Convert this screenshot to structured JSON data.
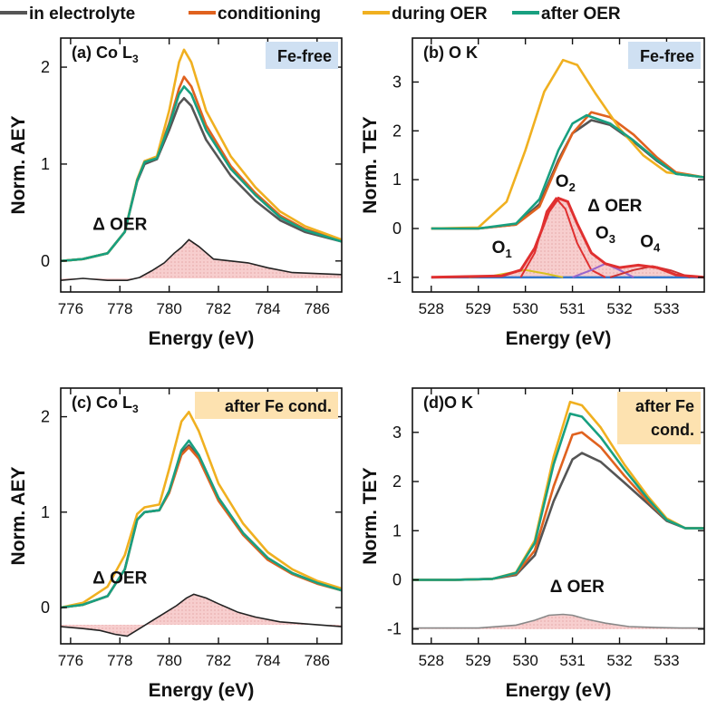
{
  "legend": {
    "items": [
      {
        "label": "in electrolyte",
        "color": "#555555"
      },
      {
        "label": "conditioning",
        "color": "#e0621f"
      },
      {
        "label": "during OER",
        "color": "#f0b020"
      },
      {
        "label": "after OER",
        "color": "#18a080"
      }
    ]
  },
  "colors": {
    "diff_line": "#222222",
    "diff_fill": "#f2b3b3",
    "fefree_badge": "#cfe0f2",
    "fecond_badge": "#fde2b0",
    "fit_o1": "#d8c01f",
    "fit_o2": "#e03030",
    "fit_o3": "#9966cc",
    "fit_o4": "#cc3333",
    "fit_base": "#3377cc"
  },
  "chart_data": [
    {
      "id": "a",
      "type": "line",
      "panel_label": "(a) Co L",
      "panel_label_sub": "3",
      "badge": [
        "Fe-free"
      ],
      "xlabel": "Energy (eV)",
      "ylabel": "Norm. AEY",
      "xlim": [
        775.6,
        787.0
      ],
      "ylim": [
        -0.32,
        2.3
      ],
      "xticks": [
        776,
        778,
        780,
        782,
        784,
        786
      ],
      "yticks": [
        0,
        1,
        2
      ],
      "diff_label": "Δ OER",
      "series": [
        {
          "name": "in electrolyte",
          "x": [
            775.6,
            776.5,
            777.5,
            778.2,
            778.7,
            779.0,
            779.5,
            780.0,
            780.4,
            780.6,
            780.9,
            781.5,
            782.5,
            783.5,
            784.5,
            785.5,
            787.0
          ],
          "y": [
            0.0,
            0.02,
            0.08,
            0.3,
            0.82,
            1.0,
            1.05,
            1.35,
            1.62,
            1.68,
            1.6,
            1.25,
            0.88,
            0.62,
            0.42,
            0.3,
            0.2
          ]
        },
        {
          "name": "conditioning",
          "x": [
            775.6,
            776.5,
            777.5,
            778.2,
            778.7,
            779.0,
            779.5,
            780.0,
            780.4,
            780.6,
            780.9,
            781.5,
            782.5,
            783.5,
            784.5,
            785.5,
            787.0
          ],
          "y": [
            0.0,
            0.02,
            0.08,
            0.3,
            0.84,
            1.03,
            1.07,
            1.42,
            1.78,
            1.9,
            1.8,
            1.4,
            0.98,
            0.7,
            0.47,
            0.33,
            0.21
          ]
        },
        {
          "name": "during OER",
          "x": [
            775.6,
            776.5,
            777.5,
            778.2,
            778.7,
            779.0,
            779.5,
            780.0,
            780.4,
            780.6,
            780.9,
            781.5,
            782.5,
            783.5,
            784.5,
            785.5,
            787.0
          ],
          "y": [
            0.0,
            0.02,
            0.08,
            0.3,
            0.84,
            1.03,
            1.08,
            1.55,
            2.05,
            2.18,
            2.05,
            1.55,
            1.08,
            0.76,
            0.51,
            0.36,
            0.22
          ]
        },
        {
          "name": "after OER",
          "x": [
            775.6,
            776.5,
            777.5,
            778.2,
            778.7,
            779.0,
            779.5,
            780.0,
            780.4,
            780.6,
            780.9,
            781.5,
            782.5,
            783.5,
            784.5,
            785.5,
            787.0
          ],
          "y": [
            0.0,
            0.02,
            0.08,
            0.3,
            0.83,
            1.02,
            1.06,
            1.4,
            1.72,
            1.8,
            1.72,
            1.35,
            0.95,
            0.68,
            0.45,
            0.32,
            0.2
          ]
        }
      ],
      "difference": {
        "x": [
          775.6,
          776.5,
          777.5,
          778.3,
          778.8,
          779.3,
          779.8,
          780.2,
          780.5,
          780.8,
          781.2,
          781.8,
          782.5,
          783.2,
          784.0,
          785.0,
          786.0,
          787.0
        ],
        "y": [
          -0.2,
          -0.18,
          -0.2,
          -0.2,
          -0.17,
          -0.1,
          -0.02,
          0.08,
          0.14,
          0.22,
          0.15,
          0.02,
          0.0,
          -0.02,
          -0.07,
          -0.12,
          -0.13,
          -0.14
        ]
      }
    },
    {
      "id": "b",
      "type": "line",
      "panel_label": "(b) O K",
      "panel_label_sub": "",
      "badge": [
        "Fe-free"
      ],
      "xlabel": "Energy (eV)",
      "ylabel": "Norm. TEY",
      "xlim": [
        527.6,
        533.8
      ],
      "ylim": [
        -1.3,
        3.9
      ],
      "xticks": [
        528,
        529,
        530,
        531,
        532,
        533
      ],
      "yticks": [
        -1,
        0,
        1,
        2,
        3
      ],
      "diff_label": "Δ OER",
      "series": [
        {
          "name": "in electrolyte",
          "x": [
            528.0,
            529.0,
            529.8,
            530.3,
            530.7,
            531.0,
            531.4,
            531.8,
            532.3,
            532.8,
            533.2,
            533.8
          ],
          "y": [
            0.0,
            0.0,
            0.08,
            0.5,
            1.4,
            1.95,
            2.22,
            2.12,
            1.78,
            1.38,
            1.12,
            1.05
          ]
        },
        {
          "name": "conditioning",
          "x": [
            528.0,
            529.0,
            529.8,
            530.3,
            530.7,
            531.0,
            531.4,
            531.8,
            532.3,
            532.8,
            533.2,
            533.8
          ],
          "y": [
            0.0,
            0.0,
            0.08,
            0.45,
            1.35,
            1.95,
            2.38,
            2.28,
            1.92,
            1.45,
            1.15,
            1.05
          ]
        },
        {
          "name": "during OER",
          "x": [
            528.0,
            529.0,
            529.6,
            530.0,
            530.4,
            530.8,
            531.1,
            531.5,
            532.0,
            532.5,
            533.0,
            533.8
          ],
          "y": [
            0.0,
            0.02,
            0.55,
            1.6,
            2.8,
            3.45,
            3.35,
            2.75,
            2.05,
            1.5,
            1.15,
            1.05
          ]
        },
        {
          "name": "after OER",
          "x": [
            528.0,
            529.0,
            529.8,
            530.3,
            530.7,
            531.0,
            531.3,
            531.8,
            532.3,
            532.8,
            533.2,
            533.8
          ],
          "y": [
            0.0,
            0.0,
            0.1,
            0.6,
            1.6,
            2.15,
            2.32,
            2.15,
            1.8,
            1.4,
            1.12,
            1.05
          ]
        }
      ],
      "difference": {
        "x": [
          528.0,
          529.5,
          529.9,
          530.2,
          530.5,
          530.7,
          530.9,
          531.1,
          531.4,
          531.7,
          532.0,
          532.4,
          532.8,
          533.2,
          533.8
        ],
        "y": [
          -1.0,
          -0.97,
          -0.85,
          -0.4,
          0.35,
          0.62,
          0.55,
          0.1,
          -0.5,
          -0.72,
          -0.8,
          -0.75,
          -0.8,
          -0.95,
          -1.0
        ]
      },
      "fit_peaks": [
        {
          "label": "O",
          "sub": "1",
          "label_x": 529.5,
          "label_y": -0.5,
          "x": [
            528.8,
            529.3,
            529.7,
            530.0,
            530.4,
            530.8
          ],
          "y": [
            -1.0,
            -0.97,
            -0.9,
            -0.85,
            -0.92,
            -1.0
          ]
        },
        {
          "label": "O",
          "sub": "2",
          "label_x": 530.85,
          "label_y": 0.85,
          "x": [
            529.9,
            530.2,
            530.45,
            530.65,
            530.85,
            531.1,
            531.4,
            531.7
          ],
          "y": [
            -1.0,
            -0.5,
            0.35,
            0.62,
            0.4,
            -0.3,
            -0.85,
            -1.0
          ]
        },
        {
          "label": "O",
          "sub": "3",
          "label_x": 531.7,
          "label_y": -0.2,
          "x": [
            531.0,
            531.4,
            531.7,
            532.0,
            532.3
          ],
          "y": [
            -1.0,
            -0.85,
            -0.72,
            -0.85,
            -1.0
          ]
        },
        {
          "label": "O",
          "sub": "4",
          "label_x": 532.65,
          "label_y": -0.38,
          "x": [
            531.8,
            532.3,
            532.7,
            533.1,
            533.5
          ],
          "y": [
            -1.0,
            -0.85,
            -0.77,
            -0.86,
            -1.0
          ]
        }
      ]
    },
    {
      "id": "c",
      "type": "line",
      "panel_label": "(c) Co L",
      "panel_label_sub": "3",
      "badge": [
        "after Fe cond."
      ],
      "xlabel": "Energy (eV)",
      "ylabel": "Norm. AEY",
      "xlim": [
        775.6,
        787.0
      ],
      "ylim": [
        -0.38,
        2.3
      ],
      "xticks": [
        776,
        778,
        780,
        782,
        784,
        786
      ],
      "yticks": [
        0,
        1,
        2
      ],
      "diff_label": "Δ OER",
      "series": [
        {
          "name": "in electrolyte",
          "x": [
            775.6,
            776.5,
            777.5,
            778.2,
            778.7,
            779.0,
            779.6,
            780.0,
            780.5,
            780.8,
            781.2,
            782.0,
            783.0,
            784.0,
            785.0,
            786.0,
            787.0
          ],
          "y": [
            0.0,
            0.03,
            0.12,
            0.4,
            0.92,
            1.0,
            1.02,
            1.22,
            1.62,
            1.7,
            1.58,
            1.15,
            0.78,
            0.52,
            0.36,
            0.26,
            0.18
          ]
        },
        {
          "name": "conditioning",
          "x": [
            775.6,
            776.5,
            777.5,
            778.2,
            778.7,
            779.0,
            779.6,
            780.0,
            780.5,
            780.8,
            781.2,
            782.0,
            783.0,
            784.0,
            785.0,
            786.0,
            787.0
          ],
          "y": [
            0.0,
            0.03,
            0.12,
            0.4,
            0.92,
            1.0,
            1.02,
            1.2,
            1.6,
            1.68,
            1.56,
            1.12,
            0.76,
            0.5,
            0.35,
            0.25,
            0.18
          ]
        },
        {
          "name": "during OER",
          "x": [
            775.6,
            776.5,
            777.5,
            778.2,
            778.7,
            779.0,
            779.6,
            780.0,
            780.5,
            780.8,
            781.2,
            782.0,
            783.0,
            784.0,
            785.0,
            786.0,
            787.0
          ],
          "y": [
            0.0,
            0.05,
            0.22,
            0.55,
            0.98,
            1.05,
            1.08,
            1.45,
            1.95,
            2.05,
            1.85,
            1.3,
            0.88,
            0.58,
            0.4,
            0.28,
            0.2
          ]
        },
        {
          "name": "after OER",
          "x": [
            775.6,
            776.5,
            777.5,
            778.2,
            778.7,
            779.0,
            779.6,
            780.0,
            780.5,
            780.8,
            781.2,
            782.0,
            783.0,
            784.0,
            785.0,
            786.0,
            787.0
          ],
          "y": [
            0.0,
            0.03,
            0.12,
            0.4,
            0.92,
            1.0,
            1.02,
            1.22,
            1.65,
            1.75,
            1.6,
            1.15,
            0.78,
            0.52,
            0.36,
            0.26,
            0.18
          ]
        }
      ],
      "difference": {
        "x": [
          775.6,
          776.5,
          777.2,
          777.8,
          778.3,
          778.8,
          779.3,
          779.8,
          780.3,
          780.7,
          781.0,
          781.5,
          782.0,
          782.8,
          783.5,
          784.5,
          785.5,
          787.0
        ],
        "y": [
          -0.2,
          -0.22,
          -0.24,
          -0.28,
          -0.3,
          -0.22,
          -0.14,
          -0.06,
          0.02,
          0.1,
          0.14,
          0.1,
          0.04,
          -0.05,
          -0.1,
          -0.15,
          -0.17,
          -0.2
        ]
      }
    },
    {
      "id": "d",
      "type": "line",
      "panel_label": "(d)O K",
      "panel_label_sub": "",
      "badge": [
        "after Fe",
        "cond."
      ],
      "xlabel": "Energy (eV)",
      "ylabel": "Norm. TEY",
      "xlim": [
        527.6,
        533.8
      ],
      "ylim": [
        -1.3,
        3.9
      ],
      "xticks": [
        528,
        529,
        530,
        531,
        532,
        533
      ],
      "yticks": [
        -1,
        0,
        1,
        2,
        3
      ],
      "diff_label": "Δ OER",
      "series": [
        {
          "name": "in electrolyte",
          "x": [
            527.6,
            528.5,
            529.3,
            529.8,
            530.2,
            530.6,
            531.0,
            531.2,
            531.6,
            532.1,
            532.6,
            533.0,
            533.4,
            533.8
          ],
          "y": [
            0.0,
            0.0,
            0.02,
            0.1,
            0.5,
            1.6,
            2.45,
            2.58,
            2.4,
            1.98,
            1.55,
            1.2,
            1.05,
            1.05
          ]
        },
        {
          "name": "conditioning",
          "x": [
            527.6,
            528.5,
            529.3,
            529.8,
            530.2,
            530.6,
            531.0,
            531.2,
            531.6,
            532.1,
            532.6,
            533.0,
            533.4,
            533.8
          ],
          "y": [
            0.0,
            0.0,
            0.02,
            0.12,
            0.6,
            1.9,
            2.95,
            3.0,
            2.7,
            2.12,
            1.6,
            1.22,
            1.05,
            1.05
          ]
        },
        {
          "name": "during OER",
          "x": [
            527.6,
            528.5,
            529.3,
            529.8,
            530.2,
            530.6,
            530.95,
            531.2,
            531.6,
            532.1,
            532.6,
            533.0,
            533.4,
            533.8
          ],
          "y": [
            0.0,
            0.0,
            0.02,
            0.15,
            0.8,
            2.5,
            3.62,
            3.55,
            3.1,
            2.35,
            1.7,
            1.25,
            1.05,
            1.05
          ]
        },
        {
          "name": "after OER",
          "x": [
            527.6,
            528.5,
            529.3,
            529.8,
            530.2,
            530.6,
            530.95,
            531.2,
            531.6,
            532.1,
            532.6,
            533.0,
            533.4,
            533.8
          ],
          "y": [
            0.0,
            0.0,
            0.02,
            0.14,
            0.75,
            2.35,
            3.38,
            3.32,
            2.9,
            2.25,
            1.65,
            1.22,
            1.05,
            1.05
          ]
        }
      ],
      "difference": {
        "x": [
          527.6,
          529.0,
          529.8,
          530.2,
          530.5,
          530.8,
          531.0,
          531.3,
          531.7,
          532.2,
          532.8,
          533.3,
          533.8
        ],
        "y": [
          -0.98,
          -0.98,
          -0.92,
          -0.82,
          -0.72,
          -0.7,
          -0.72,
          -0.8,
          -0.88,
          -0.95,
          -0.97,
          -0.98,
          -0.98
        ]
      }
    }
  ]
}
